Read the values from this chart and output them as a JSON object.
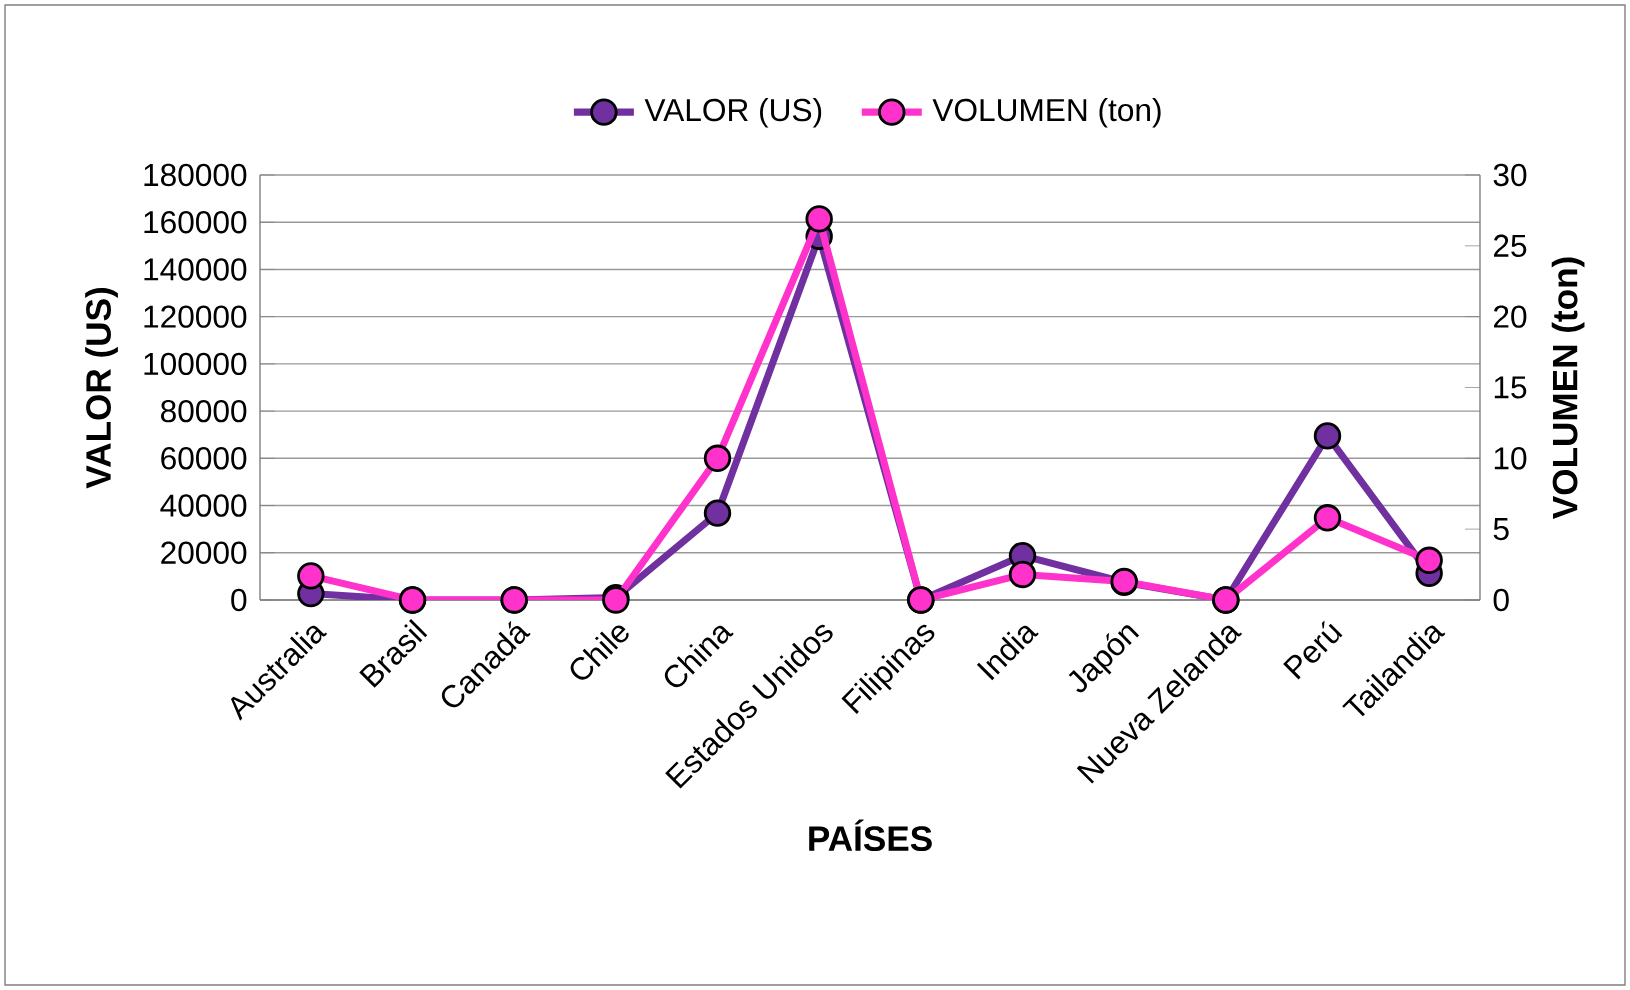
{
  "chart_data": {
    "type": "line",
    "xlabel": "PAÍSES",
    "ylabel": "VALOR (US)",
    "y2label": "VOLUMEN (ton)",
    "categories": [
      "Australia",
      "Brasil",
      "Canadá",
      "Chile",
      "China",
      "Estados Unidos",
      "Filipinas",
      "India",
      "Japón",
      "Nueva Zelanda",
      "Perú",
      "Tailandia"
    ],
    "series": [
      {
        "name": "VALOR (US)",
        "color": "#7030a0",
        "values": [
          2700,
          0,
          0,
          1000,
          36800,
          154000,
          0,
          18800,
          7500,
          0,
          69500,
          11300
        ]
      },
      {
        "name": "VOLUMEN (ton)",
        "color": "#ff33cc",
        "axis": "y2",
        "values": [
          1.7,
          0,
          0,
          0,
          10,
          26.9,
          0,
          1.8,
          1.3,
          0,
          5.8,
          2.8
        ]
      }
    ],
    "ylim": [
      0,
      180000
    ],
    "yticks": [
      0,
      20000,
      40000,
      60000,
      80000,
      100000,
      120000,
      140000,
      160000,
      180000
    ],
    "y2lim": [
      0,
      30
    ],
    "y2ticks": [
      0,
      5,
      10,
      15,
      20,
      25,
      30
    ],
    "grid": "y",
    "legend": "top",
    "marker": "circle",
    "line_style": "solid"
  }
}
